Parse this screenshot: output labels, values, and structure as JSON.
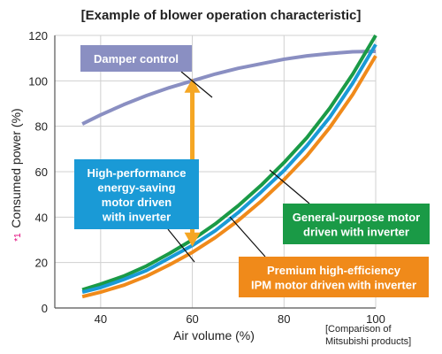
{
  "chart_data": {
    "type": "line",
    "title": "[Example of blower operation characteristic]",
    "xlabel": "Air volume (%)",
    "ylabel": "Consumed power (%)",
    "ylabel_footnote_mark": "*1",
    "xlim": [
      30,
      100
    ],
    "ylim": [
      0,
      120
    ],
    "x_ticks": [
      40,
      60,
      80,
      100
    ],
    "y_ticks": [
      0,
      20,
      40,
      60,
      80,
      100,
      120
    ],
    "grid": true,
    "series": [
      {
        "name": "Damper control",
        "color": "#8a8fc2",
        "x": [
          36,
          40,
          45,
          50,
          55,
          60,
          65,
          70,
          75,
          80,
          85,
          90,
          95,
          100
        ],
        "y": [
          81,
          85,
          89.5,
          93.5,
          97,
          100,
          103,
          105.5,
          107.5,
          109.5,
          111,
          112,
          112.8,
          113
        ]
      },
      {
        "name": "General-purpose motor driven with inverter",
        "color": "#1a9a46",
        "x": [
          36,
          40,
          45,
          50,
          55,
          60,
          65,
          70,
          75,
          80,
          85,
          90,
          95,
          100
        ],
        "y": [
          8,
          10.5,
          14,
          18.5,
          24,
          30,
          37,
          45,
          54,
          64,
          75,
          88,
          103,
          120
        ]
      },
      {
        "name": "High-performance energy-saving motor driven with inverter",
        "color": "#1a9ad6",
        "x": [
          36,
          40,
          45,
          50,
          55,
          60,
          65,
          70,
          75,
          80,
          85,
          90,
          95,
          100
        ],
        "y": [
          7,
          9,
          12.5,
          16.5,
          22,
          27.5,
          34,
          42,
          51,
          60.5,
          71.5,
          84,
          99,
          116
        ]
      },
      {
        "name": "Premium high-efficiency IPM motor driven with inverter",
        "color": "#f08a1a",
        "x": [
          36,
          40,
          45,
          50,
          55,
          60,
          65,
          70,
          75,
          80,
          85,
          90,
          95,
          100
        ],
        "y": [
          5,
          7,
          10,
          14,
          19,
          24.5,
          31,
          38.5,
          47,
          56.5,
          67,
          79.5,
          94,
          111
        ]
      }
    ],
    "annotations": [
      {
        "text_lines": [
          "Damper control"
        ],
        "bg": "#8a8fc2"
      },
      {
        "text_lines": [
          "High-performance",
          "energy-saving",
          "motor driven",
          "with inverter"
        ],
        "bg": "#1a9ad6"
      },
      {
        "text_lines": [
          "General-purpose motor",
          "driven with inverter"
        ],
        "bg": "#1a9a46"
      },
      {
        "text_lines": [
          "Premium high-efficiency",
          "IPM motor driven with inverter"
        ],
        "bg": "#f08a1a"
      }
    ],
    "arrow": {
      "x": 60,
      "y_from": 27,
      "y_to": 101,
      "color": "#f5a623"
    },
    "note_lines": [
      "[Comparison of",
      "Mitsubishi products]"
    ]
  }
}
